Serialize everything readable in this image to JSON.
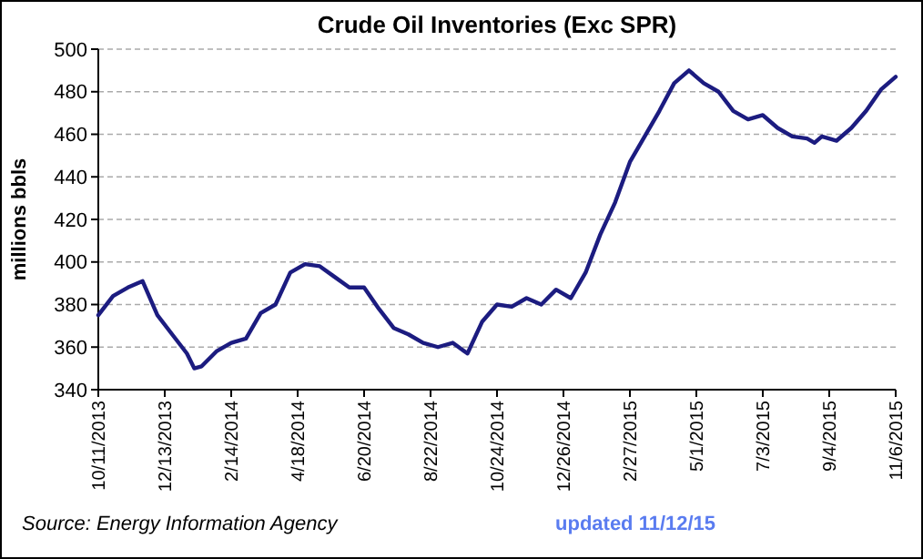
{
  "chart_data": {
    "type": "line",
    "title": "Crude Oil Inventories (Exc SPR)",
    "ylabel": "millions bbls",
    "annotations": [
      "Source: Energy Information Agency",
      "updated 11/12/15"
    ],
    "x": [
      "2013-10-11",
      "2013-10-25",
      "2013-11-08",
      "2013-11-22",
      "2013-12-06",
      "2013-12-20",
      "2014-01-03",
      "2014-01-10",
      "2014-01-17",
      "2014-01-31",
      "2014-02-14",
      "2014-02-28",
      "2014-03-14",
      "2014-03-28",
      "2014-04-11",
      "2014-04-25",
      "2014-05-09",
      "2014-05-23",
      "2014-06-06",
      "2014-06-20",
      "2014-07-04",
      "2014-07-18",
      "2014-08-01",
      "2014-08-15",
      "2014-08-29",
      "2014-09-12",
      "2014-09-26",
      "2014-10-10",
      "2014-10-24",
      "2014-11-07",
      "2014-11-21",
      "2014-12-05",
      "2014-12-19",
      "2015-01-02",
      "2015-01-16",
      "2015-01-30",
      "2015-02-13",
      "2015-02-27",
      "2015-03-13",
      "2015-03-27",
      "2015-04-10",
      "2015-04-24",
      "2015-05-08",
      "2015-05-22",
      "2015-06-05",
      "2015-06-19",
      "2015-07-03",
      "2015-07-17",
      "2015-07-31",
      "2015-08-14",
      "2015-08-21",
      "2015-08-28",
      "2015-09-11",
      "2015-09-25",
      "2015-10-09",
      "2015-10-23",
      "2015-11-06"
    ],
    "series": [
      {
        "color": "#1c1c80",
        "values": [
          375,
          384,
          388,
          391,
          375,
          366,
          357,
          350,
          351,
          358,
          362,
          364,
          376,
          380,
          395,
          399,
          398,
          393,
          388,
          388,
          378,
          369,
          366,
          362,
          360,
          362,
          357,
          372,
          380,
          379,
          383,
          380,
          387,
          383,
          395,
          413,
          428,
          447,
          459,
          471,
          484,
          490,
          484,
          480,
          471,
          467,
          469,
          463,
          459,
          458,
          456,
          459,
          457,
          463,
          471,
          481,
          487
        ]
      }
    ],
    "xlim": [
      "2013-10-11",
      "2015-11-06"
    ],
    "xticks": [
      {
        "value": "2013-10-11",
        "label": "10/11/2013"
      },
      {
        "value": "2013-12-13",
        "label": "12/13/2013"
      },
      {
        "value": "2014-02-14",
        "label": "2/14/2014"
      },
      {
        "value": "2014-04-18",
        "label": "4/18/2014"
      },
      {
        "value": "2014-06-20",
        "label": "6/20/2014"
      },
      {
        "value": "2014-08-22",
        "label": "8/22/2014"
      },
      {
        "value": "2014-10-24",
        "label": "10/24/2014"
      },
      {
        "value": "2014-12-26",
        "label": "12/26/2014"
      },
      {
        "value": "2015-02-27",
        "label": "2/27/2015"
      },
      {
        "value": "2015-05-01",
        "label": "5/1/2015"
      },
      {
        "value": "2015-07-03",
        "label": "7/3/2015"
      },
      {
        "value": "2015-09-04",
        "label": "9/4/2015"
      },
      {
        "value": "2015-11-06",
        "label": "11/6/2015"
      }
    ],
    "ylim": [
      340,
      500
    ],
    "yticks": [
      340,
      360,
      380,
      400,
      420,
      440,
      460,
      480,
      500
    ],
    "grid": "y",
    "line_style": "solid"
  }
}
